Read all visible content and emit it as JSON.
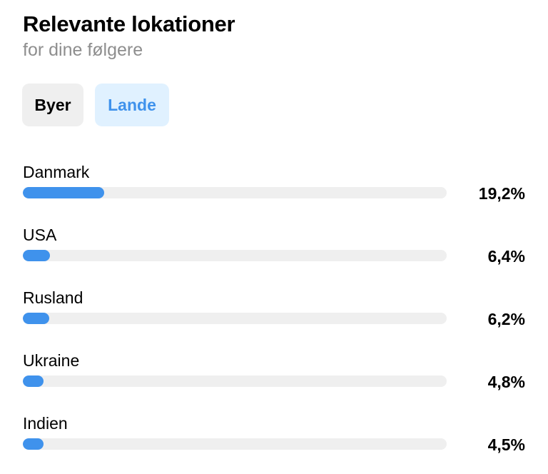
{
  "header": {
    "title": "Relevante lokationer",
    "subtitle": "for dine følgere"
  },
  "tabs": [
    {
      "label": "Byer",
      "selected": false
    },
    {
      "label": "Lande",
      "selected": true
    }
  ],
  "locations": [
    {
      "name": "Danmark",
      "percent_label": "19,2%",
      "percent": 19.2
    },
    {
      "name": "USA",
      "percent_label": "6,4%",
      "percent": 6.4
    },
    {
      "name": "Rusland",
      "percent_label": "6,2%",
      "percent": 6.2
    },
    {
      "name": "Ukraine",
      "percent_label": "4,8%",
      "percent": 4.8
    },
    {
      "name": "Indien",
      "percent_label": "4,5%",
      "percent": 4.5
    }
  ],
  "colors": {
    "accent": "#3f92ec",
    "selected_tab_bg": "#e0f1ff",
    "tab_bg": "#efefef",
    "track": "#efefef",
    "subtitle": "#8e8e8e"
  }
}
